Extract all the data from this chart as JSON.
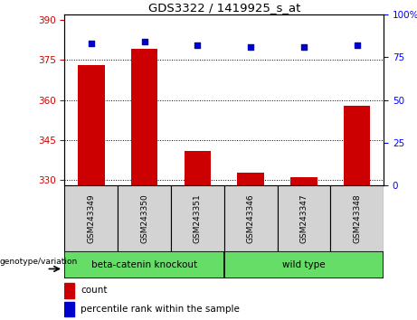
{
  "title": "GDS3322 / 1419925_s_at",
  "categories": [
    "GSM243349",
    "GSM243350",
    "GSM243351",
    "GSM243346",
    "GSM243347",
    "GSM243348"
  ],
  "bar_values": [
    373,
    379,
    341,
    333,
    331,
    358
  ],
  "scatter_values": [
    83,
    84,
    82,
    81,
    81,
    82
  ],
  "ylim_left": [
    328,
    392
  ],
  "ylim_right": [
    0,
    100
  ],
  "yticks_left": [
    330,
    345,
    360,
    375,
    390
  ],
  "yticks_right": [
    0,
    25,
    50,
    75,
    100
  ],
  "bar_color": "#cc0000",
  "scatter_color": "#0000cc",
  "label_bg_color": "#d3d3d3",
  "group1_label": "beta-catenin knockout",
  "group2_label": "wild type",
  "group_color": "#66dd66",
  "group1_indices": [
    0,
    1,
    2
  ],
  "group2_indices": [
    3,
    4,
    5
  ],
  "legend_count_label": "count",
  "legend_percentile_label": "percentile rank within the sample",
  "genotype_label": "genotype/variation"
}
